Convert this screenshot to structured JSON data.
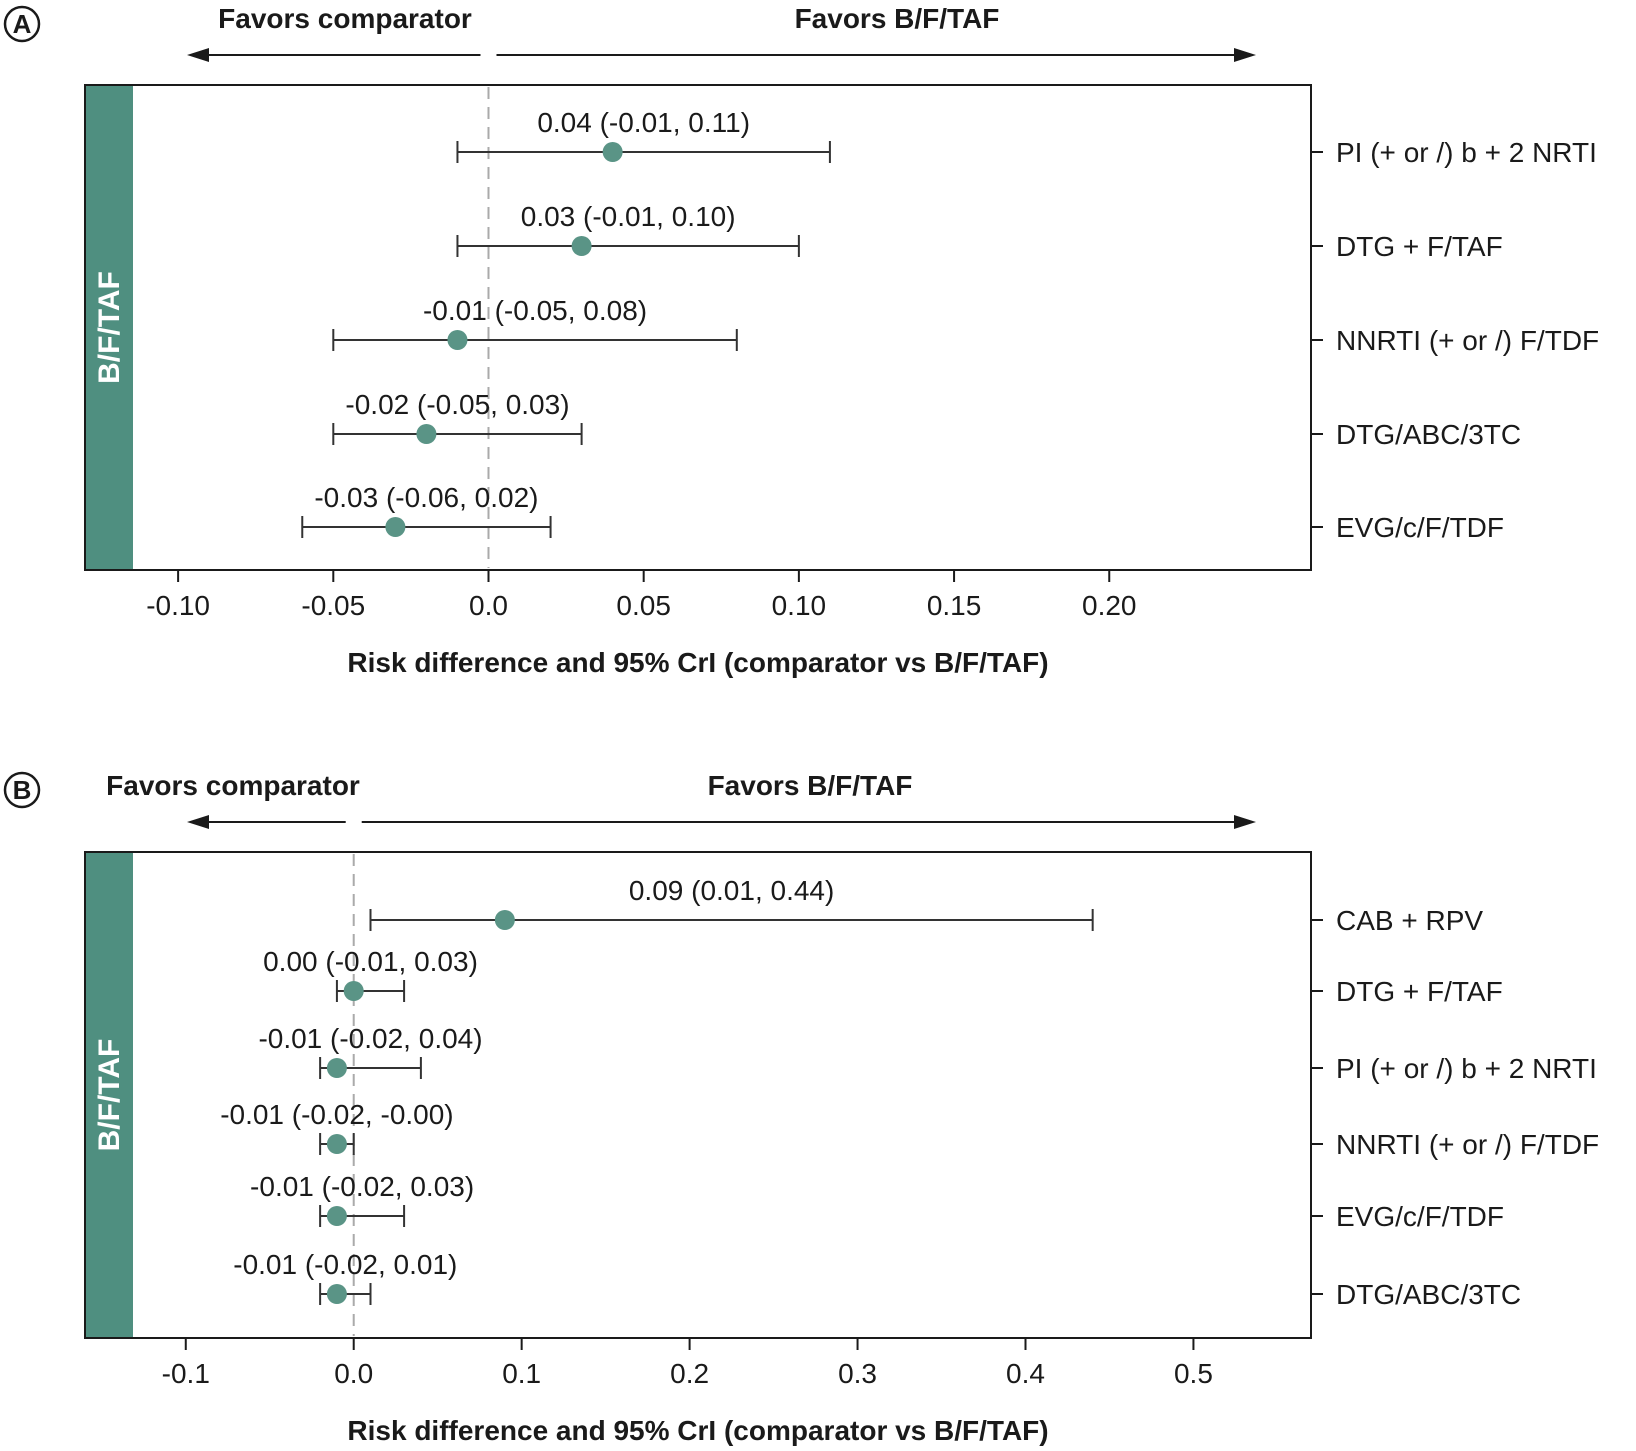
{
  "colors": {
    "accent": "#4f8f80",
    "marker": "#5a9486",
    "line": "#333333",
    "text": "#1a1a1a",
    "zero_line": "#aaaaaa"
  },
  "chart_data": [
    {
      "panel_label": "A",
      "type": "scatter",
      "subtype": "forest-plot",
      "direction_left": "Favors comparator",
      "direction_right": "Favors B/F/TAF",
      "side_band_label": "B/F/TAF",
      "xlabel": "Risk difference and 95% CrI (comparator vs B/F/TAF)",
      "xlim": [
        -0.13,
        0.265
      ],
      "xticks": [
        -0.1,
        -0.05,
        0.0,
        0.05,
        0.1,
        0.15,
        0.2
      ],
      "xtick_labels": [
        "-0.10",
        "-0.05",
        "0.0",
        "0.05",
        "0.10",
        "0.15",
        "0.20"
      ],
      "reference_line": 0,
      "rows": [
        {
          "label": "PI (+ or /) b + 2 NRTI",
          "estimate": 0.04,
          "lower": -0.01,
          "upper": 0.11,
          "text": "0.04 (-0.01, 0.11)"
        },
        {
          "label": "DTG + F/TAF",
          "estimate": 0.03,
          "lower": -0.01,
          "upper": 0.1,
          "text": "0.03 (-0.01, 0.10)"
        },
        {
          "label": "NNRTI (+ or /) F/TDF",
          "estimate": -0.01,
          "lower": -0.05,
          "upper": 0.08,
          "text": "-0.01 (-0.05, 0.08)"
        },
        {
          "label": "DTG/ABC/3TC",
          "estimate": -0.02,
          "lower": -0.05,
          "upper": 0.03,
          "text": "-0.02 (-0.05, 0.03)"
        },
        {
          "label": "EVG/c/F/TDF",
          "estimate": -0.03,
          "lower": -0.06,
          "upper": 0.02,
          "text": "-0.03 (-0.06, 0.02)"
        }
      ]
    },
    {
      "panel_label": "B",
      "type": "scatter",
      "subtype": "forest-plot",
      "direction_left": "Favors comparator",
      "direction_right": "Favors B/F/TAF",
      "side_band_label": "B/F/TAF",
      "xlabel": "Risk difference and 95% CrI (comparator vs B/F/TAF)",
      "xlim": [
        -0.16,
        0.57
      ],
      "xticks": [
        -0.1,
        0.0,
        0.1,
        0.2,
        0.3,
        0.4,
        0.5
      ],
      "xtick_labels": [
        "-0.1",
        "0.0",
        "0.1",
        "0.2",
        "0.3",
        "0.4",
        "0.5"
      ],
      "reference_line": 0,
      "rows": [
        {
          "label": "CAB + RPV",
          "estimate": 0.09,
          "lower": 0.01,
          "upper": 0.44,
          "text": "0.09 (0.01, 0.44)"
        },
        {
          "label": "DTG + F/TAF",
          "estimate": 0.0,
          "lower": -0.01,
          "upper": 0.03,
          "text": "0.00 (-0.01, 0.03)"
        },
        {
          "label": "PI (+ or /) b + 2 NRTI",
          "estimate": -0.01,
          "lower": -0.02,
          "upper": 0.04,
          "text": "-0.01 (-0.02, 0.04)"
        },
        {
          "label": "NNRTI (+ or /) F/TDF",
          "estimate": -0.01,
          "lower": -0.02,
          "upper": 0.0,
          "text": "-0.01 (-0.02, -0.00)"
        },
        {
          "label": "EVG/c/F/TDF",
          "estimate": -0.01,
          "lower": -0.02,
          "upper": 0.03,
          "text": "-0.01 (-0.02, 0.03)"
        },
        {
          "label": "DTG/ABC/3TC",
          "estimate": -0.01,
          "lower": -0.02,
          "upper": 0.01,
          "text": "-0.01 (-0.02, 0.01)"
        }
      ]
    }
  ]
}
